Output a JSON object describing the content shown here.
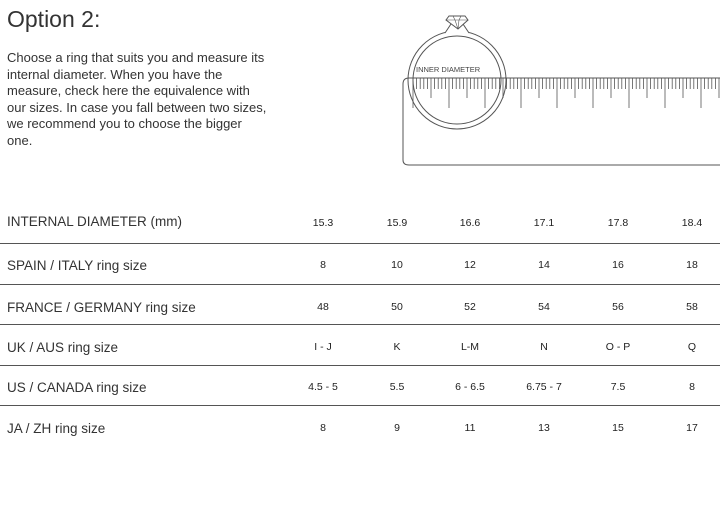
{
  "title": "Option 2:",
  "intro": "Choose a ring that suits you and measure its internal diameter. When you have the measure, check here the equivalence with our sizes. In case you fall between two sizes, we recommend you to choose the bigger one.",
  "illustration": {
    "label": "INNER DIAMETER",
    "icons": [
      "ring-icon",
      "ruler-icon"
    ]
  },
  "table": {
    "rows": [
      {
        "label": "INTERNAL DIAMETER (mm)",
        "values": [
          "15.3",
          "15.9",
          "16.6",
          "17.1",
          "17.8",
          "18.4"
        ]
      },
      {
        "label": "SPAIN / ITALY ring size",
        "values": [
          "8",
          "10",
          "12",
          "14",
          "16",
          "18"
        ]
      },
      {
        "label": "FRANCE / GERMANY ring size",
        "values": [
          "48",
          "50",
          "52",
          "54",
          "56",
          "58"
        ]
      },
      {
        "label": "UK / AUS ring size",
        "values": [
          "I - J",
          "K",
          "L-M",
          "N",
          "O - P",
          "Q"
        ]
      },
      {
        "label": "US / CANADA ring size",
        "values": [
          "4.5 - 5",
          "5.5",
          "6 - 6.5",
          "6.75 - 7",
          "7.5",
          "8"
        ]
      },
      {
        "label": "JA / ZH ring size",
        "values": [
          "8",
          "9",
          "11",
          "13",
          "15",
          "17"
        ]
      }
    ]
  }
}
